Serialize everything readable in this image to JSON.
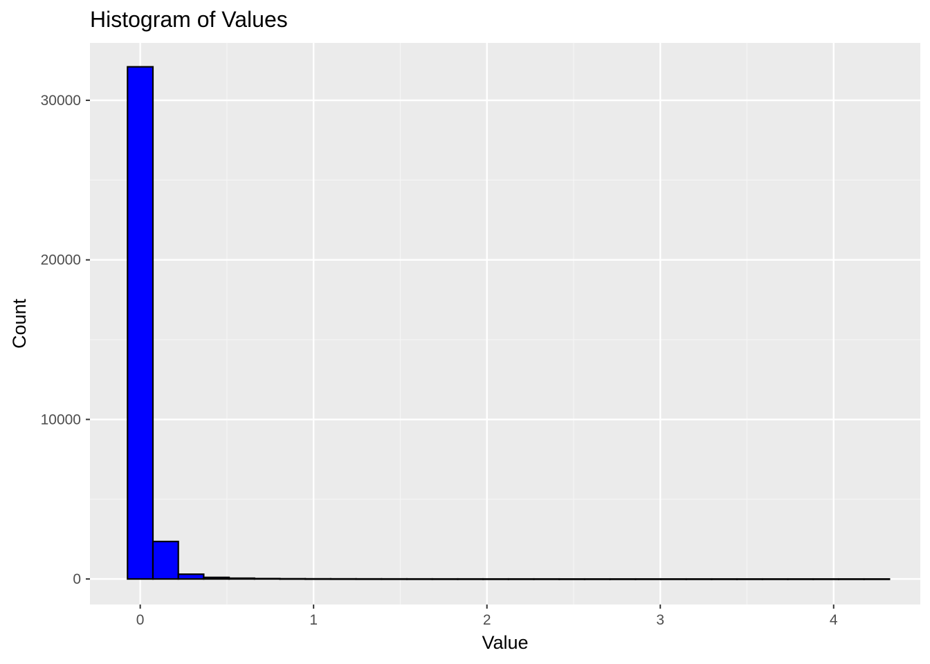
{
  "chart_data": {
    "type": "bar",
    "title": "Histogram of Values",
    "xlabel": "Value",
    "ylabel": "Count",
    "xlim": [
      -0.29,
      4.5
    ],
    "ylim": [
      -1600,
      33600
    ],
    "x_ticks": [
      0,
      1,
      2,
      3,
      4
    ],
    "x_tick_labels": [
      "0",
      "1",
      "2",
      "3",
      "4"
    ],
    "y_ticks": [
      0,
      10000,
      20000,
      30000
    ],
    "y_tick_labels": [
      "0",
      "10000",
      "20000",
      "30000"
    ],
    "grid": true,
    "legend": "none",
    "bin_width": 0.1465,
    "bins_start": -0.0733,
    "counts": [
      32100,
      2350,
      300,
      100,
      50,
      25,
      15,
      10,
      8,
      6,
      5,
      4,
      3,
      3,
      2,
      2,
      2,
      1,
      1,
      1,
      1,
      1,
      1,
      1,
      1,
      1,
      1,
      1,
      1,
      1
    ],
    "colors": {
      "bar_fill": "#0000ff",
      "bar_stroke": "#000000",
      "panel_bg": "#ebebeb",
      "grid_major": "#ffffff",
      "grid_minor": "#f5f5f5"
    }
  }
}
